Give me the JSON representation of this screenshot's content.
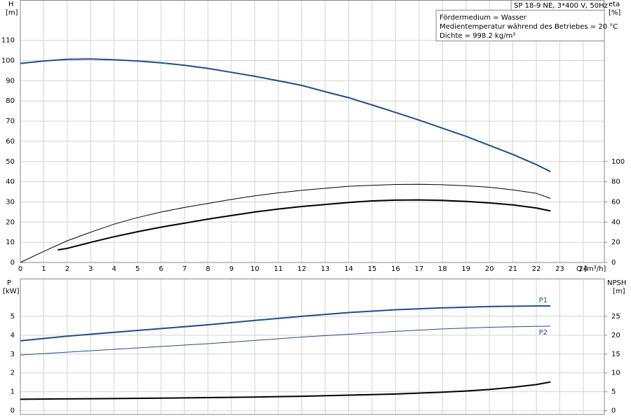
{
  "chart_data": [
    {
      "type": "line",
      "title": "SP 18-9 NE, 3*400 V, 50Hz",
      "annotations": [
        "Fördermedium = Wasser",
        "Medientemperatur während des Betriebes = 20 °C",
        "Dichte = 998.2 kg/m³"
      ],
      "xlabel": "Q [m³/h]",
      "ylabel": "H",
      "yunit": "[m]",
      "y2label": "eta",
      "y2unit": "[%]",
      "xlim": [
        0,
        24.9
      ],
      "xticks": [
        0,
        1,
        2,
        3,
        4,
        5,
        6,
        7,
        8,
        9,
        10,
        11,
        12,
        13,
        14,
        15,
        16,
        17,
        18,
        19,
        20,
        21,
        22,
        23,
        24
      ],
      "ylim": [
        0,
        130
      ],
      "yticks": [
        0,
        10,
        20,
        30,
        40,
        50,
        60,
        70,
        80,
        90,
        100,
        110
      ],
      "y2lim": [
        0,
        260
      ],
      "y2ticks": [
        0,
        20,
        40,
        60,
        80,
        100
      ],
      "grid": true,
      "series": [
        {
          "color": "#1f4e8c",
          "line_width": 2,
          "x": [
            0,
            1,
            2,
            3,
            4,
            5,
            6,
            7,
            8,
            9,
            10,
            11,
            12,
            13,
            14,
            15,
            16,
            17,
            18,
            19,
            20,
            21,
            22,
            22.6
          ],
          "values": [
            98.6,
            99.8,
            100.6,
            100.8,
            100.4,
            99.8,
            98.9,
            97.7,
            96.1,
            94.2,
            92.2,
            90,
            87.7,
            84.6,
            81.6,
            78,
            74.3,
            70.5,
            66.5,
            62.5,
            58,
            53.5,
            48.5,
            45
          ]
        },
        {
          "color": "#000000",
          "line_width": 1,
          "axis": "y2",
          "x": [
            0,
            1,
            2,
            3,
            4,
            5,
            6,
            7,
            8,
            9,
            10,
            11,
            12,
            13,
            14,
            15,
            16,
            17,
            18,
            19,
            20,
            21,
            22,
            22.6
          ],
          "values": [
            0,
            11,
            21.5,
            30,
            38,
            44.5,
            50,
            54.5,
            58.5,
            62.5,
            66,
            69,
            71.5,
            73.5,
            75.5,
            76.5,
            77.3,
            77.5,
            77,
            76,
            74.5,
            72,
            68.5,
            63.5
          ]
        },
        {
          "color": "#000000",
          "line_width": 2,
          "axis": "y2",
          "x": [
            1.6,
            2,
            3,
            4,
            5,
            6,
            7,
            8,
            9,
            10,
            11,
            12,
            13,
            14,
            15,
            16,
            17,
            18,
            19,
            20,
            21,
            22,
            22.6
          ],
          "values": [
            12.5,
            14,
            20,
            25.5,
            30.5,
            35,
            39,
            43,
            46.5,
            50,
            53,
            55.5,
            57.5,
            59.5,
            61,
            61.8,
            62,
            61.5,
            60.5,
            59,
            57,
            54,
            51
          ]
        }
      ]
    },
    {
      "type": "line",
      "ylabel": "P",
      "yunit": "[kW]",
      "y2label": "NPSH",
      "y2unit": "[m]",
      "ylim": [
        -0.2,
        7
      ],
      "yticks": [
        0,
        1,
        2,
        3,
        4,
        5
      ],
      "y2lim": [
        -1,
        35
      ],
      "y2ticks": [
        0,
        5,
        10,
        15,
        20,
        25
      ],
      "grid": true,
      "series": [
        {
          "name": "P1",
          "color": "#1f4e8c",
          "line_width": 2,
          "x": [
            0,
            2,
            4,
            6,
            8,
            10,
            12,
            14,
            16,
            18,
            20,
            22,
            22.6
          ],
          "values": [
            3.7,
            3.95,
            4.15,
            4.35,
            4.55,
            4.78,
            5.0,
            5.2,
            5.35,
            5.45,
            5.52,
            5.55,
            5.55
          ]
        },
        {
          "name": "P2",
          "color": "#1f4e8c",
          "line_width": 1,
          "x": [
            0,
            2,
            4,
            6,
            8,
            10,
            12,
            14,
            16,
            18,
            20,
            22,
            22.6
          ],
          "values": [
            2.95,
            3.1,
            3.25,
            3.4,
            3.55,
            3.72,
            3.9,
            4.05,
            4.2,
            4.33,
            4.42,
            4.47,
            4.48
          ]
        },
        {
          "color": "#000000",
          "line_width": 2,
          "axis": "y2",
          "x": [
            0,
            1.6,
            4,
            6,
            8,
            10,
            12,
            14,
            16,
            18,
            19,
            20,
            21,
            22,
            22.6
          ],
          "values": [
            3.0,
            3.1,
            3.2,
            3.3,
            3.45,
            3.6,
            3.8,
            4.1,
            4.4,
            4.9,
            5.2,
            5.6,
            6.2,
            6.9,
            7.6
          ]
        }
      ]
    }
  ]
}
